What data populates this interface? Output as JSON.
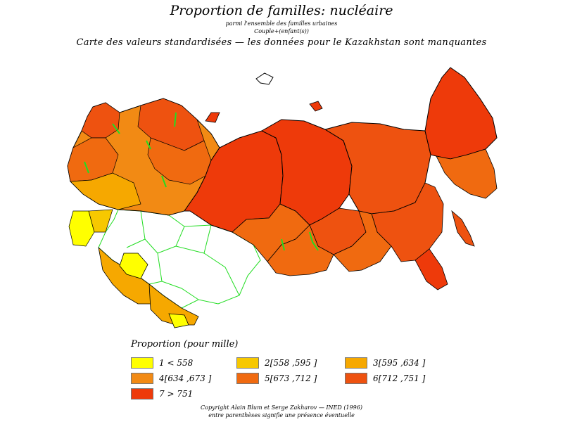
{
  "header": {
    "title": "Proportion de familles: nucléaire",
    "subtitle1": "parmi l'ensemble des familles urbaines",
    "subtitle2": "Couple+(enfant(s))",
    "subtitle3": "Carte des valeurs standardisées  —  les données pour le Kazakhstan sont manquantes"
  },
  "map": {
    "fill_missing": "#ffffff",
    "internal_border_color": "#22dd22",
    "outline_color": "#000000"
  },
  "legend": {
    "title": "Proportion (pour mille)",
    "items": [
      {
        "label": "1  <  558",
        "color": "#ffff00"
      },
      {
        "label": "2[558 ,595 ]",
        "color": "#f7c800"
      },
      {
        "label": "3[595 ,634 ]",
        "color": "#f6a800"
      },
      {
        "label": "4[634 ,673 ]",
        "color": "#f28a14"
      },
      {
        "label": "5[673 ,712 ]",
        "color": "#f06a10"
      },
      {
        "label": "6[712 ,751 ]",
        "color": "#ee5210"
      },
      {
        "label": "7  >  751",
        "color": "#ee3a0a"
      }
    ]
  },
  "footer": {
    "copyright": "Copyright Alain Blum et Serge Zakharov — INED (1996)",
    "note": "entre parenthèses signifie une présence éventuelle"
  }
}
